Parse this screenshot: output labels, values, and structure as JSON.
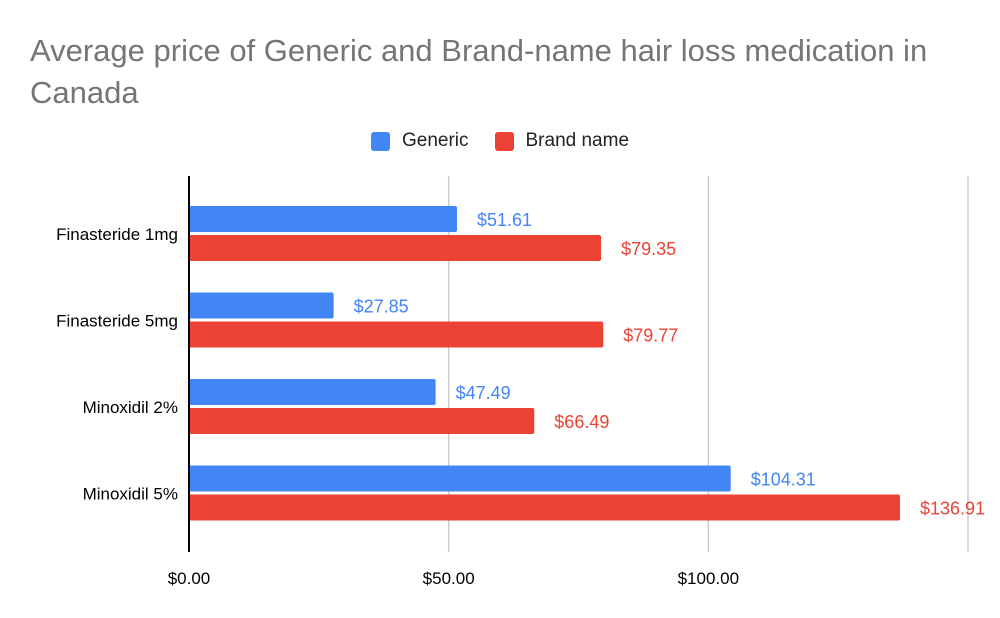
{
  "chart_data": {
    "type": "bar",
    "orientation": "horizontal",
    "title": "Average price of Generic and Brand-name hair loss medication in Canada",
    "categories": [
      "Finasteride 1mg",
      "Finasteride 5mg",
      "Minoxidil 2%",
      "Minoxidil 5%"
    ],
    "series": [
      {
        "name": "Generic",
        "color": "#4285f4",
        "values": [
          51.61,
          27.85,
          47.49,
          104.31
        ],
        "labels": [
          "$51.61",
          "$27.85",
          "$47.49",
          "$104.31"
        ]
      },
      {
        "name": "Brand name",
        "color": "#ea4335",
        "values": [
          79.35,
          79.77,
          66.49,
          136.91
        ],
        "labels": [
          "$79.35",
          "$79.77",
          "$66.49",
          "$136.91"
        ]
      }
    ],
    "xlim": [
      0,
      150
    ],
    "ticks": [
      0,
      50,
      100,
      150
    ],
    "tick_labels": [
      "$0.00",
      "$50.00",
      "$100.00",
      ""
    ],
    "grid": true,
    "legend_position": "top"
  }
}
